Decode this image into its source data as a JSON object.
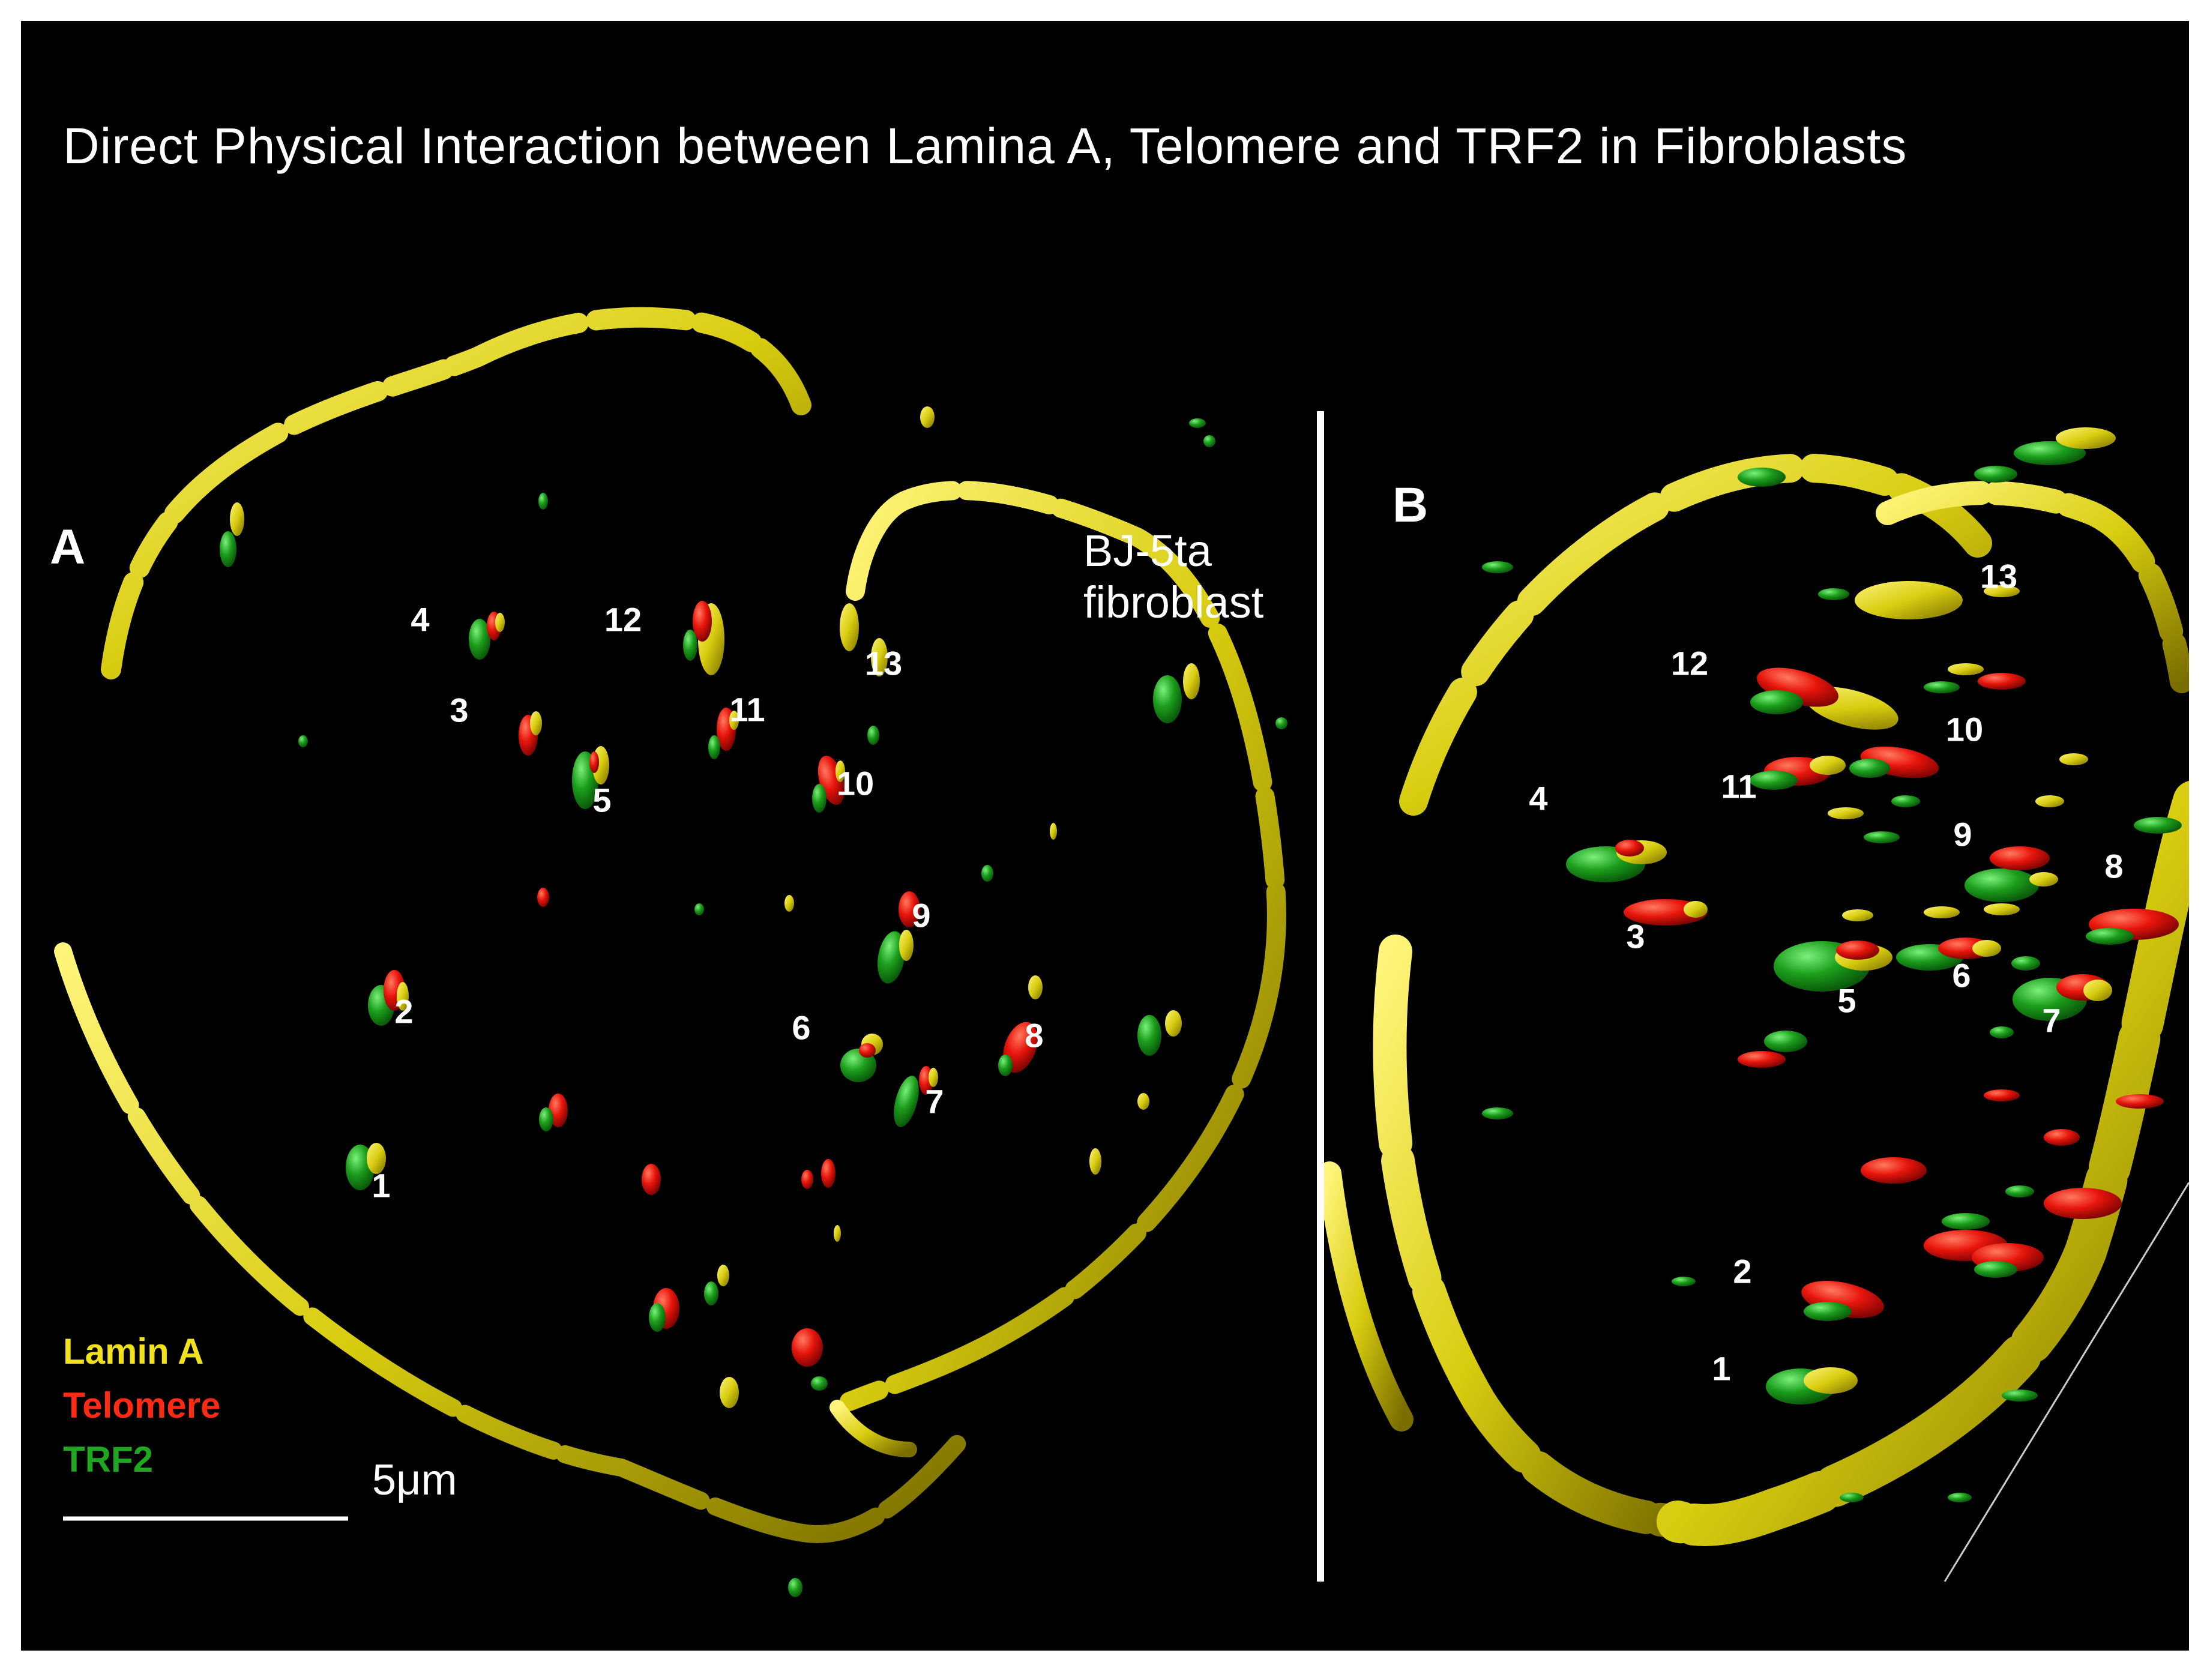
{
  "figure": {
    "title": "Direct Physical Interaction between Lamina A,  Telomere  and TRF2 in Fibroblasts",
    "panel_a_label": "A",
    "panel_b_label": "B",
    "cell_label_line1": "BJ-5ta",
    "cell_label_line2": "fibroblast",
    "legend": [
      {
        "label": "Lamin A",
        "color": "#f2e21c"
      },
      {
        "label": "Telomere",
        "color": "#ff2a14"
      },
      {
        "label": "TRF2",
        "color": "#1fa81f"
      }
    ],
    "scale_bar_label": "5μm",
    "colors": {
      "lamin": "#d8cc10",
      "telomere": "#e8160c",
      "trf2": "#1c9e1c",
      "background": "#000000"
    },
    "panel_a_labels": [
      "1",
      "2",
      "3",
      "4",
      "5",
      "6",
      "7",
      "8",
      "9",
      "10",
      "11",
      "12",
      "13"
    ],
    "panel_b_labels": [
      "1",
      "2",
      "3",
      "4",
      "5",
      "6",
      "7",
      "8",
      "9",
      "10",
      "11",
      "12",
      "13"
    ]
  }
}
